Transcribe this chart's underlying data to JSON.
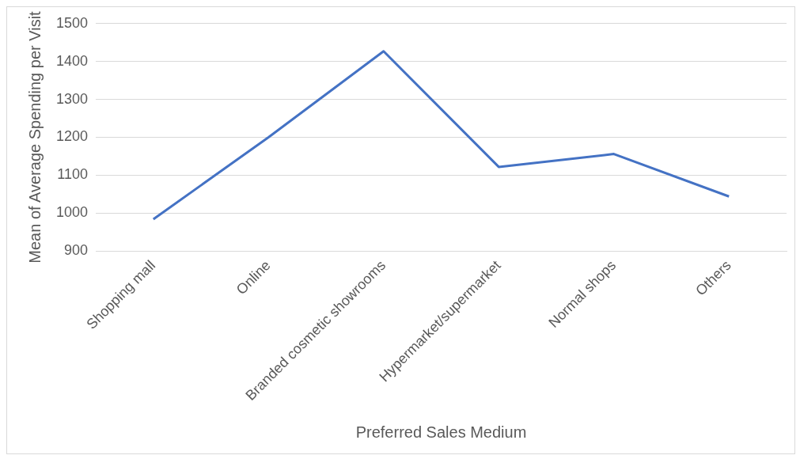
{
  "chart_data": {
    "type": "line",
    "xlabel": "Preferred Sales Medium",
    "ylabel": "Mean of Average Spending per Visit",
    "categories": [
      "Shopping mall",
      "Online",
      "Branded cosmetic showrooms",
      "Hypermarket/supermarket",
      "Normal shops",
      "Others"
    ],
    "series": [
      {
        "color": "#4472c4",
        "values": [
          984,
          1200,
          1427,
          1122,
          1156,
          1044
        ]
      }
    ],
    "ylim": [
      900,
      1500
    ],
    "yticks": [
      900,
      1000,
      1100,
      1200,
      1300,
      1400,
      1500
    ],
    "grid": "y",
    "legend": false,
    "marker": "none",
    "line_style": "solid"
  }
}
